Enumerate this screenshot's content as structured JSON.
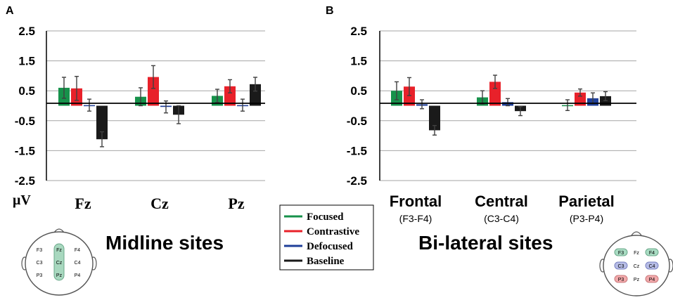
{
  "colors": {
    "Focused": "#17924b",
    "Contrastive": "#e8212a",
    "Defocused": "#1f3f99",
    "Baseline": "#1a1a1a",
    "grid": "#a6a6a6",
    "error_bar": "#404040",
    "head_mid": "#a8d8bf",
    "head_frontal": "#a9dcc3",
    "head_central": "#b7bde6",
    "head_parietal": "#f2a9ab"
  },
  "legend": {
    "items": [
      {
        "key": "Focused",
        "label": "Focused"
      },
      {
        "key": "Contrastive",
        "label": "Contrastive"
      },
      {
        "key": "Defocused",
        "label": "Defocused"
      },
      {
        "key": "Baseline",
        "label": "Baseline"
      }
    ]
  },
  "unit_label": "μV",
  "chart_data": [
    {
      "type": "bar",
      "panel": "A",
      "title": "Midline sites",
      "ylabel": "μV",
      "yticks": [
        "2.5",
        "1.5",
        "0.5",
        "-0.5",
        "-1.5",
        "-2.5"
      ],
      "ytick_values": [
        2.5,
        1.5,
        0.5,
        -0.5,
        -1.5,
        -2.5
      ],
      "ylim": [
        -2.5,
        2.5
      ],
      "grid": true,
      "categories": [
        "Fz",
        "Cz",
        "Pz"
      ],
      "category_sublabels": [
        "",
        "",
        ""
      ],
      "series": [
        {
          "name": "Focused",
          "values": [
            0.6,
            0.3,
            0.33
          ],
          "errors": [
            0.35,
            0.3,
            0.22
          ]
        },
        {
          "name": "Contrastive",
          "values": [
            0.58,
            0.96,
            0.65
          ],
          "errors": [
            0.4,
            0.38,
            0.22
          ]
        },
        {
          "name": "Defocused",
          "values": [
            0.02,
            -0.04,
            0.02
          ],
          "errors": [
            0.2,
            0.2,
            0.2
          ]
        },
        {
          "name": "Baseline",
          "values": [
            -1.12,
            -0.3,
            0.72
          ],
          "errors": [
            0.25,
            0.3,
            0.23
          ]
        }
      ],
      "head_map": {
        "left": [
          "F3",
          "C3",
          "P3"
        ],
        "mid": [
          "Fz",
          "Cz",
          "Pz"
        ],
        "right": [
          "F4",
          "C4",
          "P4"
        ]
      }
    },
    {
      "type": "bar",
      "panel": "B",
      "title": "Bi-lateral sites",
      "ylabel": "",
      "yticks": [
        "2.5",
        "1.5",
        "0.5",
        "-0.5",
        "-1.5",
        "-2.5"
      ],
      "ytick_values": [
        2.5,
        1.5,
        0.5,
        -0.5,
        -1.5,
        -2.5
      ],
      "ylim": [
        -2.5,
        2.5
      ],
      "grid": true,
      "categories": [
        "Frontal",
        "Central",
        "Parietal"
      ],
      "category_sublabels": [
        "(F3-F4)",
        "(C3-C4)",
        "(P3-P4)"
      ],
      "series": [
        {
          "name": "Focused",
          "values": [
            0.5,
            0.28,
            0.02
          ],
          "errors": [
            0.3,
            0.22,
            0.18
          ]
        },
        {
          "name": "Contrastive",
          "values": [
            0.64,
            0.8,
            0.44
          ],
          "errors": [
            0.3,
            0.22,
            0.12
          ]
        },
        {
          "name": "Defocused",
          "values": [
            0.05,
            0.12,
            0.25
          ],
          "errors": [
            0.15,
            0.12,
            0.18
          ]
        },
        {
          "name": "Baseline",
          "values": [
            -0.82,
            -0.18,
            0.32
          ],
          "errors": [
            0.16,
            0.15,
            0.15
          ]
        }
      ],
      "head_map": {
        "left": [
          "F3",
          "C3",
          "P3"
        ],
        "mid": [
          "Fz",
          "Cz",
          "Pz"
        ],
        "right": [
          "F4",
          "C4",
          "P4"
        ]
      }
    }
  ]
}
